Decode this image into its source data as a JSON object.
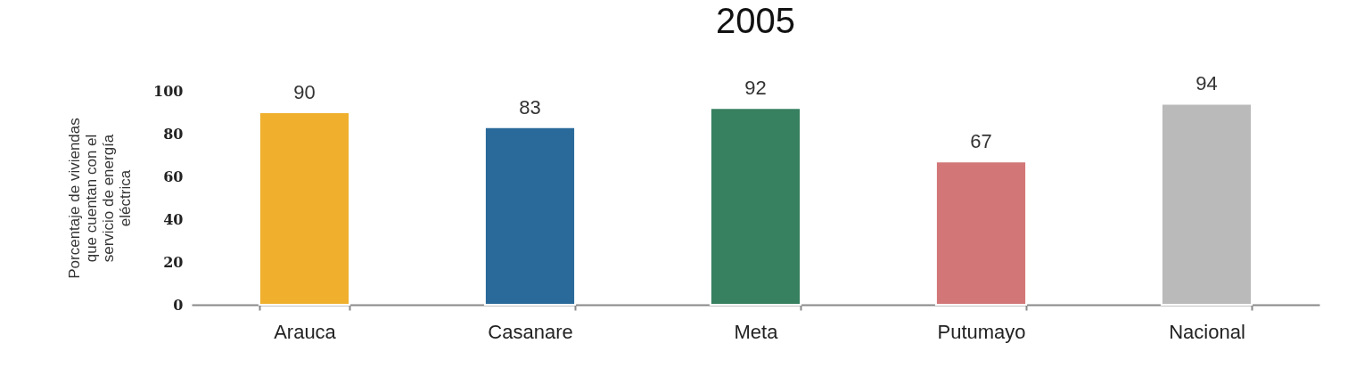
{
  "chart_data": {
    "type": "bar",
    "title": "2005",
    "ylabel": "Porcentaje de viviendas que cuentan con el servicio de energía eléctrica",
    "categories": [
      "Arauca",
      "Casanare",
      "Meta",
      "Putumayo",
      "Nacional"
    ],
    "values": [
      90,
      83,
      92,
      67,
      94
    ],
    "colors": [
      "#f0b02e",
      "#2a6a9a",
      "#378060",
      "#d27678",
      "#bababa"
    ],
    "ylim": [
      0,
      100
    ],
    "yticks": [
      0,
      20,
      40,
      60,
      80,
      100
    ],
    "data_labels": true,
    "grid": false
  }
}
